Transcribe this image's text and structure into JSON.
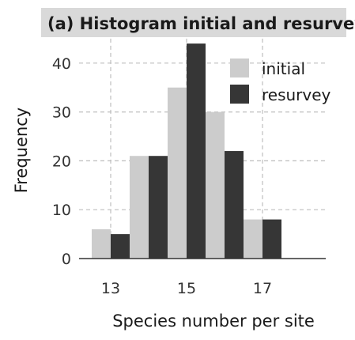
{
  "chart_data": {
    "type": "bar",
    "title": "(a) Histogram initial and resurvey",
    "xlabel": "Species number per site",
    "ylabel": "Frequency",
    "categories": [
      13,
      14,
      15,
      16,
      17
    ],
    "x_ticks": [
      "13",
      "15",
      "17"
    ],
    "y_ticks": [
      0,
      10,
      20,
      30,
      40
    ],
    "ylim": [
      0,
      45
    ],
    "grid": true,
    "legend_position": "top-right",
    "series": [
      {
        "name": "initial",
        "color": "#cccccc",
        "values": [
          6,
          21,
          35,
          30,
          8
        ]
      },
      {
        "name": "resurvey",
        "color": "#363636",
        "values": [
          5,
          21,
          44,
          22,
          8
        ]
      }
    ]
  }
}
